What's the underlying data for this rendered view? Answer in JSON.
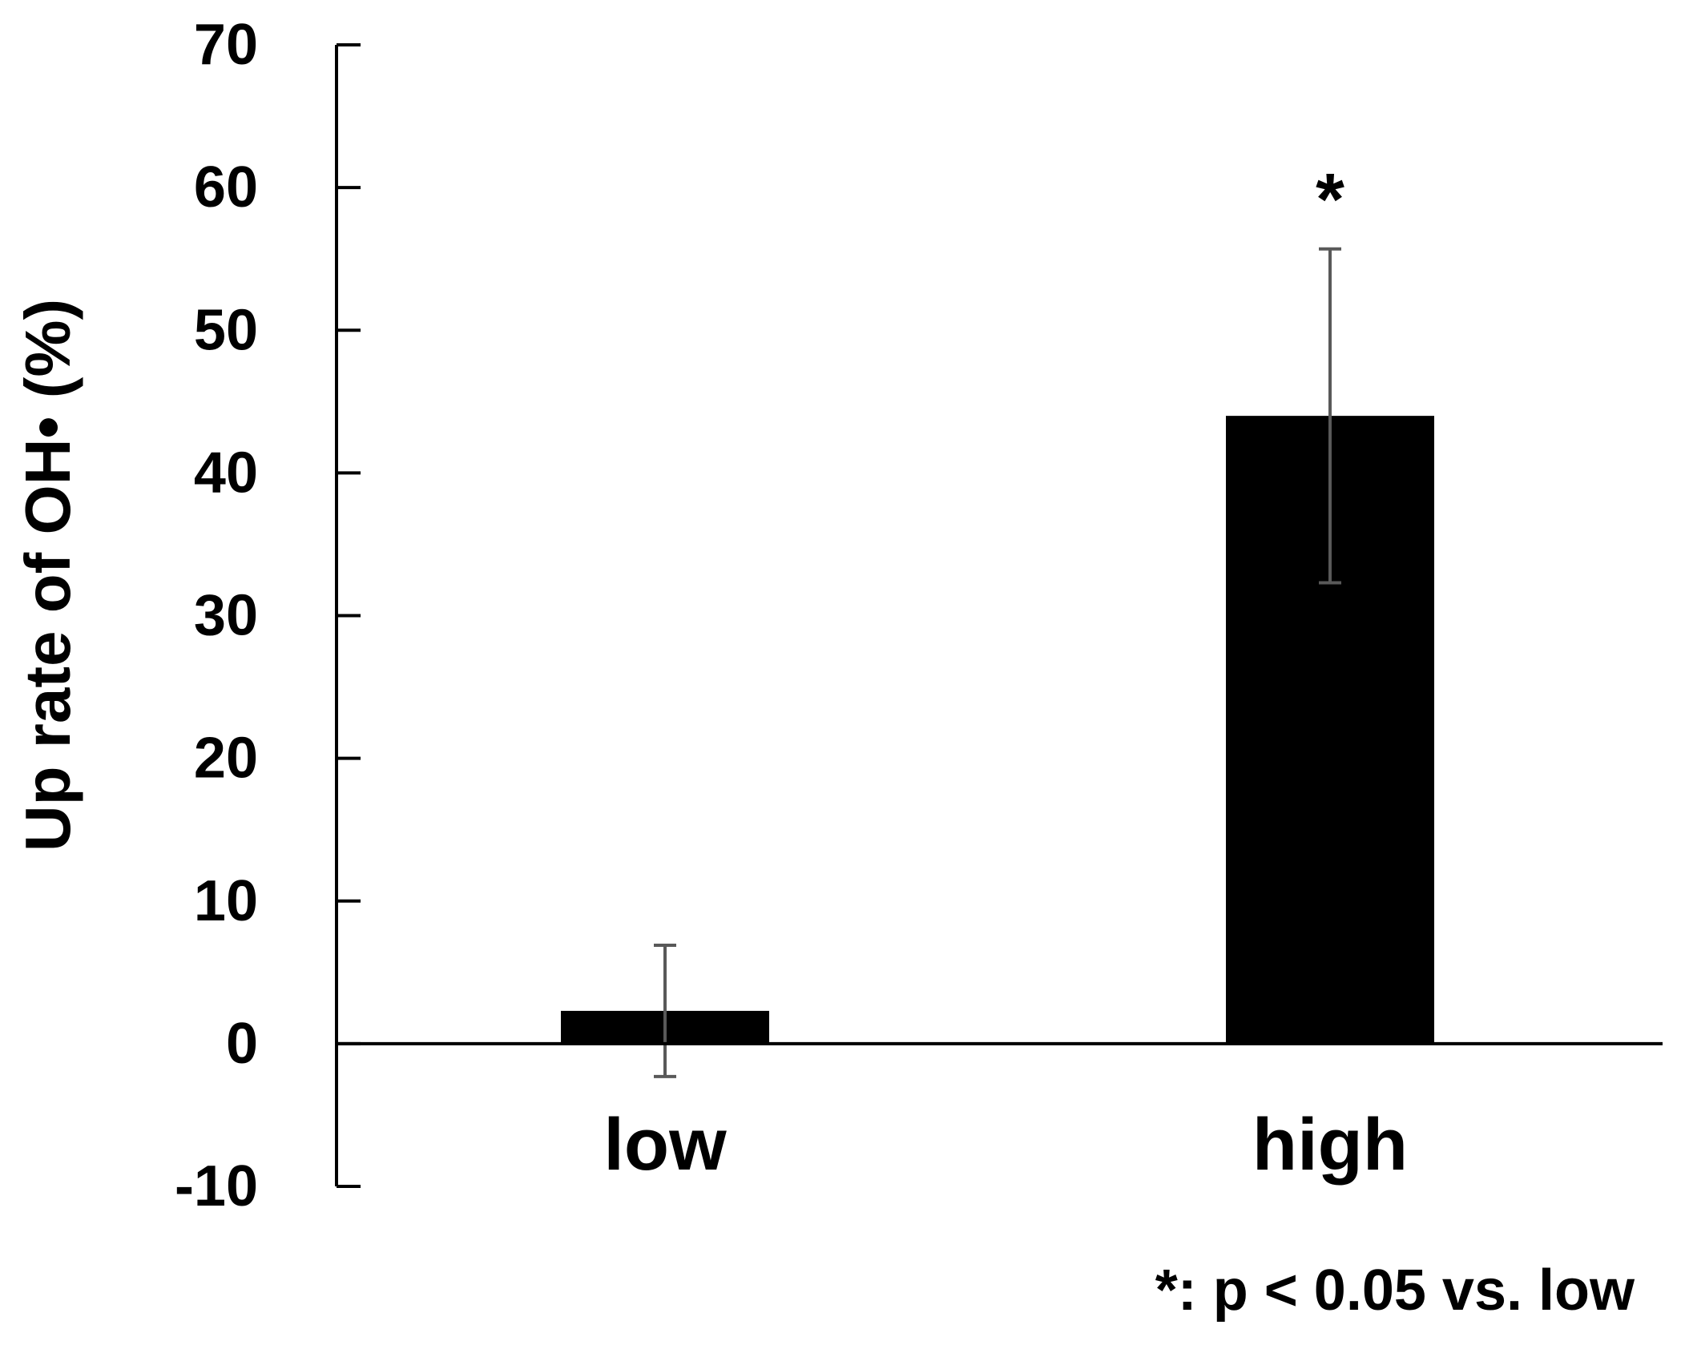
{
  "chart_data": {
    "type": "bar",
    "categories": [
      "low",
      "high"
    ],
    "values": [
      2.3,
      44.0
    ],
    "error": [
      4.6,
      11.7
    ],
    "ylabel": "Up rate of OH• (%)",
    "xlabel": "",
    "ylim": [
      -10,
      70
    ],
    "yticks": [
      70,
      60,
      50,
      40,
      30,
      20,
      10,
      0,
      -10
    ],
    "grid": false,
    "bar_color": "#000000",
    "error_bar_color": "#595959",
    "significance": [
      {
        "category": "high",
        "mark": "*"
      }
    ],
    "footnote": "*: p < 0.05 vs. low"
  }
}
